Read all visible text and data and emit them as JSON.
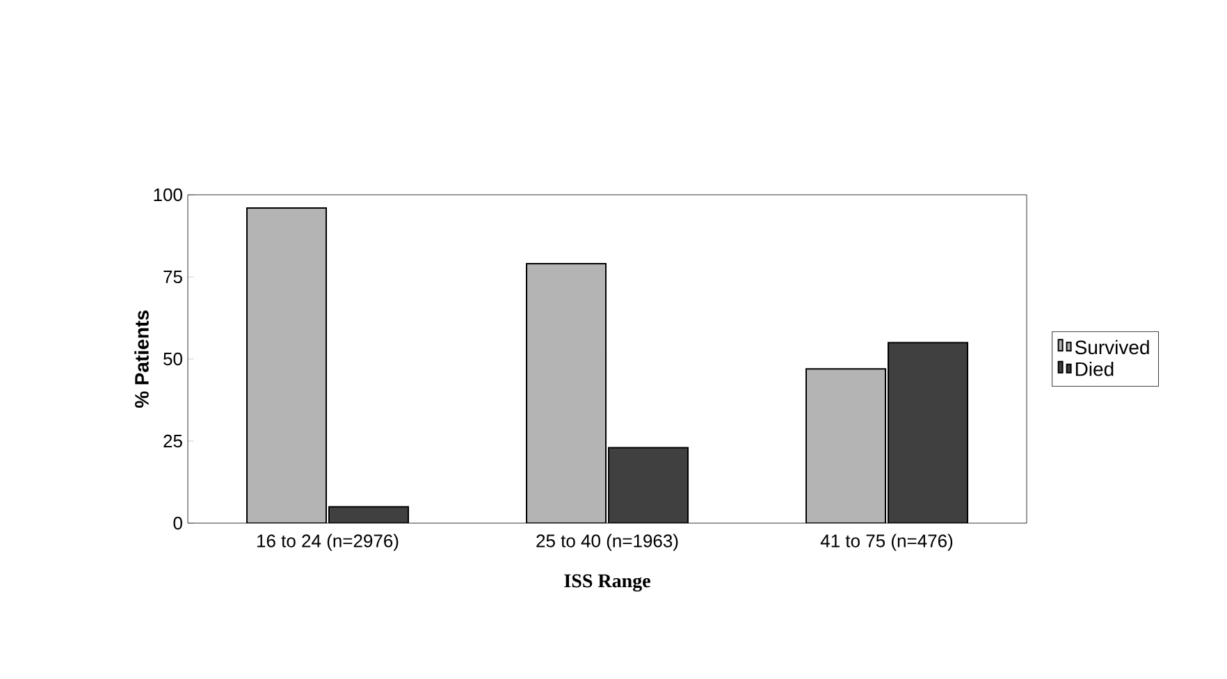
{
  "chart_data": {
    "type": "bar",
    "xlabel": "ISS Range",
    "ylabel": "% Patients",
    "categories": [
      "16 to 24 (n=2976)",
      "25 to 40 (n=1963)",
      "41 to 75 (n=476)"
    ],
    "series": [
      {
        "name": "Survived",
        "color": "#b4b4b4",
        "values": [
          96,
          79,
          47
        ]
      },
      {
        "name": "Died",
        "color": "#404040",
        "values": [
          5,
          23,
          55
        ]
      }
    ],
    "ylim": [
      0,
      100
    ],
    "yticks": [
      0,
      25,
      50,
      75,
      100
    ],
    "grid": false,
    "legend": "right"
  }
}
